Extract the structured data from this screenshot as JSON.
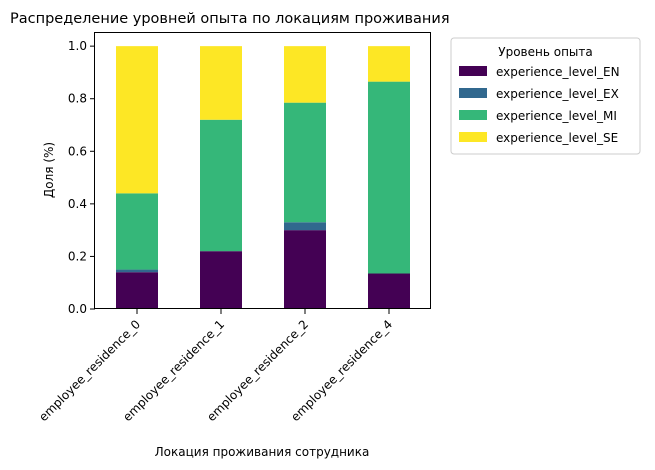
{
  "chart_data": {
    "type": "bar",
    "stacked": true,
    "title": "Распределение уровней опыта по локациям проживания",
    "xlabel": "Локация проживания сотрудника",
    "ylabel": "Доля (%)",
    "ylim": [
      0,
      1.05
    ],
    "yticks": [
      "0.0",
      "0.2",
      "0.4",
      "0.6",
      "0.8",
      "1.0"
    ],
    "ytick_values": [
      0,
      0.2,
      0.4,
      0.6,
      0.8,
      1.0
    ],
    "categories": [
      "employee_residence_0",
      "employee_residence_1",
      "employee_residence_2",
      "employee_residence_4"
    ],
    "grid": false,
    "legend": {
      "title": "Уровень опыта",
      "placement": "outside-right"
    },
    "series": [
      {
        "name": "experience_level_EN",
        "color": "#440154",
        "values": [
          0.14,
          0.22,
          0.3,
          0.135
        ]
      },
      {
        "name": "experience_level_EX",
        "color": "#31688e",
        "values": [
          0.01,
          0.0,
          0.03,
          0.0
        ]
      },
      {
        "name": "experience_level_MI",
        "color": "#35b779",
        "values": [
          0.29,
          0.5,
          0.455,
          0.73
        ]
      },
      {
        "name": "experience_level_SE",
        "color": "#fde725",
        "values": [
          0.56,
          0.28,
          0.215,
          0.135
        ]
      }
    ]
  }
}
